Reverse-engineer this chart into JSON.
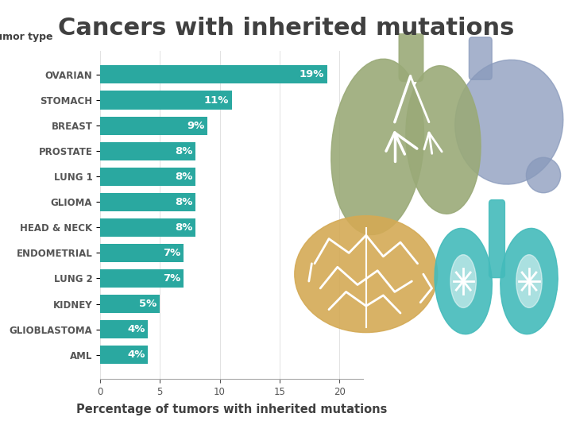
{
  "title": "Cancers with inherited mutations",
  "xlabel": "Percentage of tumors with inherited mutations",
  "ylabel_label": "Tumor type",
  "categories": [
    "OVARIAN",
    "STOMACH",
    "BREAST",
    "PROSTATE",
    "LUNG 1",
    "GLIOMA",
    "HEAD & NECK",
    "ENDOMETRIAL",
    "LUNG 2",
    "KIDNEY",
    "GLIOBLASTOMA",
    "AML"
  ],
  "values": [
    19,
    11,
    9,
    8,
    8,
    8,
    8,
    7,
    7,
    5,
    4,
    4
  ],
  "bar_color": "#2aA8A0",
  "label_color": "#ffffff",
  "title_color": "#404040",
  "axis_label_color": "#404040",
  "tick_label_color": "#555555",
  "background_color": "#ffffff",
  "xlim": [
    0,
    22
  ],
  "xticks": [
    0,
    5,
    10,
    15,
    20
  ],
  "bar_height": 0.72,
  "title_fontsize": 22,
  "label_fontsize": 9.5,
  "tick_fontsize": 8.5,
  "xlabel_fontsize": 10.5,
  "lung_color": "#9aaa78",
  "stomach_color": "#8899bb",
  "brain_color": "#d4aa55",
  "kidney_color": "#44bbbb",
  "white_detail": "#ffffff"
}
